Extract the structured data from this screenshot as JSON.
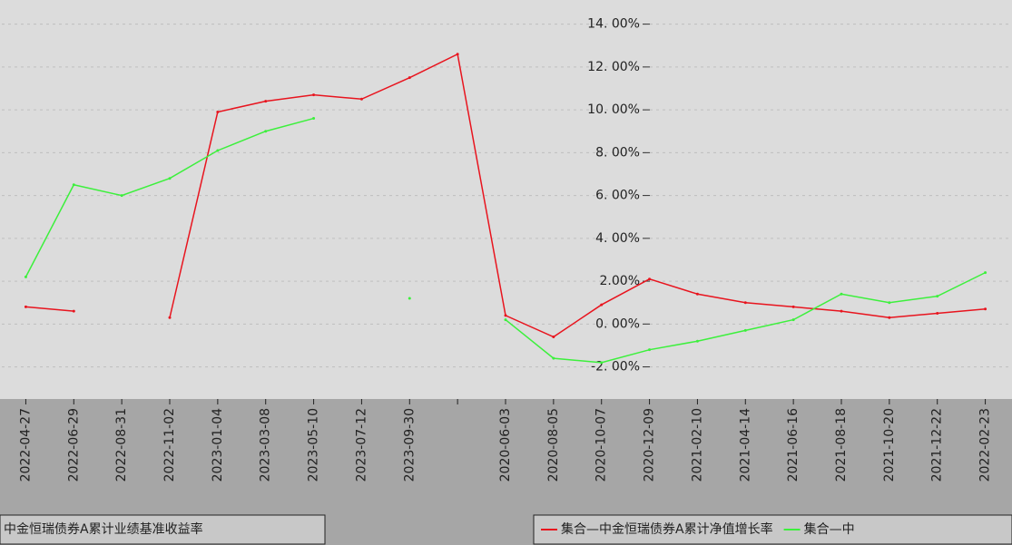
{
  "chart_data": {
    "type": "line",
    "categories": [
      "2022-04-27",
      "2022-06-29",
      "2022-08-31",
      "2022-11-02",
      "2023-01-04",
      "2023-03-08",
      "2023-05-10",
      "2023-07-12",
      "2023-09-30",
      null,
      "2020-06-03",
      "2020-08-05",
      "2020-10-07",
      "2020-12-09",
      "2021-02-10",
      "2021-04-14",
      "2021-06-16",
      "2021-08-18",
      "2021-10-20",
      "2021-12-22",
      "2022-02-23"
    ],
    "series": [
      {
        "name": "集合—中金恒瑞债券A累计净值增长率",
        "color": "#e8141e",
        "values": [
          0.8,
          0.6,
          null,
          0.3,
          9.9,
          10.4,
          10.7,
          10.5,
          11.5,
          12.6,
          0.4,
          -0.6,
          0.9,
          2.1,
          1.4,
          1.0,
          0.8,
          0.6,
          0.3,
          0.5,
          0.7
        ]
      },
      {
        "name": "集合—中",
        "color": "#3cf03c",
        "values": [
          2.2,
          6.5,
          6.0,
          6.8,
          8.1,
          9.0,
          9.6,
          null,
          1.2,
          null,
          0.2,
          -1.6,
          -1.8,
          -1.2,
          -0.8,
          -0.3,
          0.2,
          1.4,
          1.0,
          1.3,
          2.4
        ]
      }
    ],
    "legend_fragment": "中金恒瑞债券A累计业绩基准收益率",
    "ylim": [
      -3.5,
      15
    ],
    "yticks": [
      {
        "value": -2,
        "label": "-2. 00%"
      },
      {
        "value": 0,
        "label": "0. 00%"
      },
      {
        "value": 2,
        "label": "2.00%"
      },
      {
        "value": 4,
        "label": "4. 00%"
      },
      {
        "value": 6,
        "label": "6. 00%"
      },
      {
        "value": 8,
        "label": "8. 00%"
      },
      {
        "value": 10,
        "label": "10. 00%"
      },
      {
        "value": 12,
        "label": "12. 00%"
      },
      {
        "value": 14,
        "label": "14. 00%"
      }
    ],
    "grid": true
  }
}
